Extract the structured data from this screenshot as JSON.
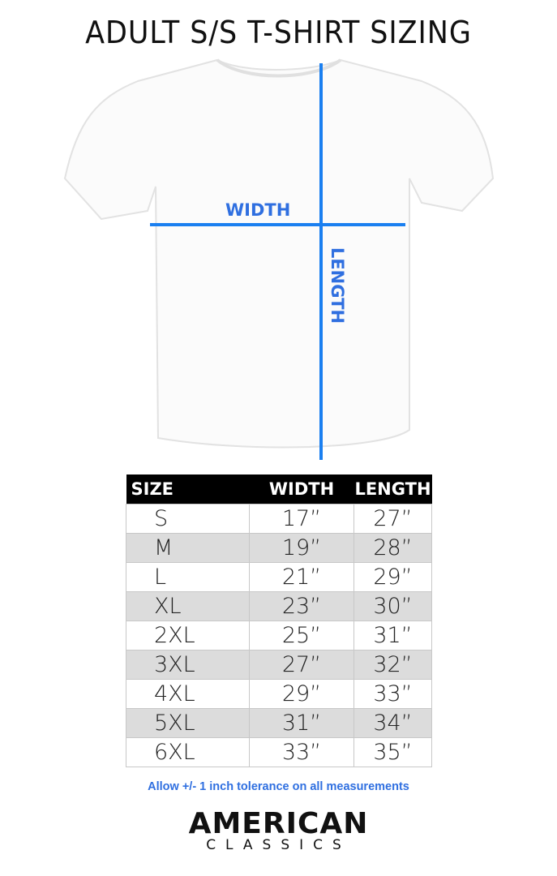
{
  "title": "ADULT S/S T-SHIRT SIZING",
  "diagram": {
    "width_label": "WIDTH",
    "length_label": "LENGTH",
    "line_color": "#1a7ff0"
  },
  "table": {
    "headers": [
      "SIZE",
      "WIDTH",
      "LENGTH"
    ],
    "rows": [
      [
        "S",
        "17”",
        "27”"
      ],
      [
        "M",
        "19”",
        "28”"
      ],
      [
        "L",
        "21”",
        "29”"
      ],
      [
        "XL",
        "23”",
        "30”"
      ],
      [
        "2XL",
        "25”",
        "31”"
      ],
      [
        "3XL",
        "27”",
        "32”"
      ],
      [
        "4XL",
        "29”",
        "33”"
      ],
      [
        "5XL",
        "31”",
        "34”"
      ],
      [
        "6XL",
        "33”",
        "35”"
      ]
    ]
  },
  "note": "Allow +/- 1 inch tolerance on all measurements",
  "brand": {
    "line1": "AMERICAN",
    "line2": "CLASSICS"
  }
}
